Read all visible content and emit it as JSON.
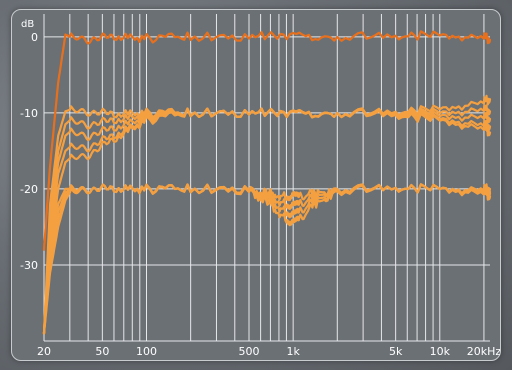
{
  "chart_data": {
    "type": "line",
    "ylabel": "dB",
    "ylim": [
      -40,
      3
    ],
    "x_scale": "log",
    "xlim": [
      20,
      22000
    ],
    "grid": true,
    "x_ticks": [
      {
        "value": 20,
        "label": "20"
      },
      {
        "value": 50,
        "label": "50"
      },
      {
        "value": 100,
        "label": "100"
      },
      {
        "value": 500,
        "label": "500"
      },
      {
        "value": 1000,
        "label": "1k"
      },
      {
        "value": 5000,
        "label": "5k"
      },
      {
        "value": 10000,
        "label": "10k"
      },
      {
        "value": 20000,
        "label": "20kHz"
      }
    ],
    "y_ticks": [
      {
        "value": 0,
        "label": "0"
      },
      {
        "value": -10,
        "label": "-10"
      },
      {
        "value": -20,
        "label": "-20"
      },
      {
        "value": -30,
        "label": "-30"
      }
    ],
    "series": [
      {
        "color": "#e8701c",
        "x": [
          20,
          22,
          25,
          28,
          30,
          40,
          60,
          100,
          200,
          500,
          1000,
          2000,
          5000,
          10000,
          20000,
          22000
        ],
        "y": [
          -28,
          -17,
          -6,
          0.3,
          0,
          -0.3,
          0,
          -0.2,
          0,
          0,
          0.2,
          0,
          0,
          0.2,
          0,
          -0.4
        ]
      },
      {
        "color": "#f5a040",
        "x": [
          20,
          22,
          25,
          28,
          30,
          40,
          60,
          100,
          200,
          500,
          1000,
          2000,
          5000,
          10000,
          20000,
          22000
        ],
        "y": [
          -39,
          -22,
          -13,
          -9.8,
          -9.6,
          -9.8,
          -10.2,
          -10,
          -10,
          -10,
          -10.1,
          -10,
          -10,
          -9.5,
          -8.5,
          -8.2
        ]
      },
      {
        "color": "#f5a040",
        "x": [
          20,
          22,
          25,
          28,
          30,
          40,
          60,
          100,
          200,
          500,
          1000,
          2000,
          5000,
          10000,
          20000,
          22000
        ],
        "y": [
          -39,
          -24,
          -15,
          -11.5,
          -11,
          -11.5,
          -11,
          -10.3,
          -10,
          -10,
          -10,
          -10,
          -10.1,
          -10,
          -9.5,
          -9.8
        ]
      },
      {
        "color": "#f5a040",
        "x": [
          20,
          22,
          25,
          28,
          30,
          40,
          60,
          100,
          200,
          500,
          1000,
          2000,
          5000,
          10000,
          20000,
          22000
        ],
        "y": [
          -39,
          -25,
          -16.5,
          -13,
          -12.5,
          -13,
          -12,
          -10.6,
          -10,
          -10,
          -10,
          -10,
          -10.2,
          -10.4,
          -10.5,
          -10.8
        ]
      },
      {
        "color": "#f5a040",
        "x": [
          20,
          22,
          25,
          28,
          30,
          40,
          60,
          100,
          200,
          500,
          1000,
          2000,
          5000,
          10000,
          20000,
          22000
        ],
        "y": [
          -39,
          -26.5,
          -18,
          -15,
          -14.5,
          -14.5,
          -13,
          -10.9,
          -10,
          -10,
          -10,
          -10,
          -10.3,
          -10.8,
          -11.5,
          -11.8
        ]
      },
      {
        "color": "#f5a040",
        "x": [
          20,
          22,
          25,
          28,
          30,
          40,
          60,
          100,
          200,
          500,
          1000,
          2000,
          5000,
          10000,
          20000,
          22000
        ],
        "y": [
          -39,
          -28,
          -20,
          -16.5,
          -16,
          -15.5,
          -13.5,
          -11,
          -10,
          -10,
          -10,
          -10,
          -10.4,
          -11,
          -12,
          -12.6
        ]
      },
      {
        "color": "#f5a040",
        "x": [
          20,
          22,
          25,
          28,
          30,
          40,
          60,
          100,
          200,
          500,
          700,
          900,
          1000,
          1100,
          1400,
          2000,
          5000,
          10000,
          20000,
          22000
        ],
        "y": [
          -39,
          -28,
          -22,
          -20,
          -20,
          -20,
          -20,
          -20.1,
          -20,
          -20,
          -20.5,
          -21,
          -21,
          -21,
          -20.5,
          -20,
          -20,
          -20,
          -20,
          -20
        ]
      },
      {
        "color": "#f5a040",
        "x": [
          20,
          22,
          25,
          28,
          30,
          40,
          60,
          100,
          200,
          500,
          700,
          900,
          1000,
          1100,
          1400,
          2000,
          5000,
          10000,
          20000,
          22000
        ],
        "y": [
          -39,
          -29,
          -23,
          -20.5,
          -20,
          -20,
          -20,
          -20,
          -20,
          -20,
          -21,
          -22,
          -22.3,
          -22,
          -21,
          -20,
          -20,
          -20,
          -20.2,
          -20.4
        ]
      },
      {
        "color": "#f5a040",
        "x": [
          20,
          22,
          25,
          28,
          30,
          40,
          60,
          100,
          200,
          500,
          700,
          900,
          1000,
          1100,
          1400,
          2000,
          5000,
          10000,
          20000,
          22000
        ],
        "y": [
          -39,
          -30,
          -24,
          -21,
          -20.2,
          -20,
          -20,
          -20,
          -20,
          -20.1,
          -21.5,
          -23,
          -23.5,
          -23,
          -21.5,
          -20.2,
          -20,
          -20,
          -20.3,
          -20.6
        ]
      },
      {
        "color": "#f5a040",
        "x": [
          20,
          22,
          25,
          28,
          30,
          40,
          60,
          100,
          200,
          500,
          700,
          900,
          1000,
          1100,
          1400,
          2000,
          5000,
          10000,
          20000,
          22000
        ],
        "y": [
          -39,
          -31,
          -25,
          -21.5,
          -20.5,
          -20,
          -20,
          -20,
          -20,
          -20.2,
          -22,
          -24,
          -24.6,
          -24,
          -22,
          -20.3,
          -20,
          -20,
          -20.5,
          -21
        ]
      }
    ]
  }
}
